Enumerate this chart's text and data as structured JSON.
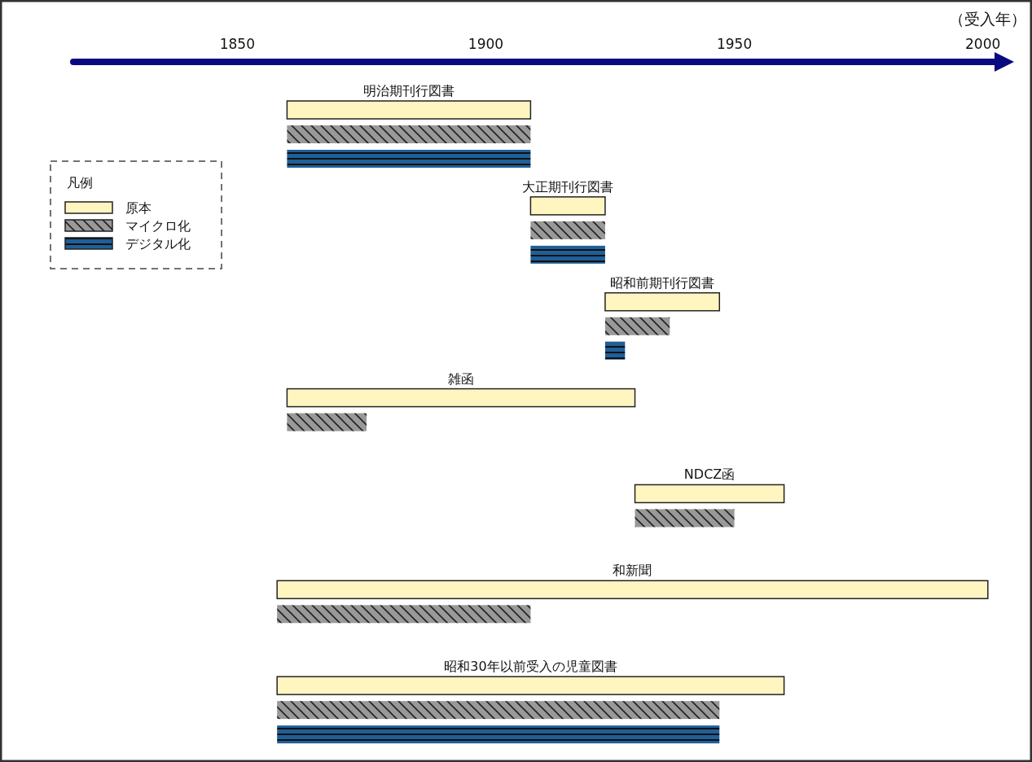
{
  "chart_data": {
    "type": "bar",
    "orientation": "horizontal",
    "categories": [
      "明治期刊行図書",
      "大正期刊行図書",
      "昭和前期刊行図書",
      "雑函",
      "NDCZ函",
      "和新聞",
      "昭和30年以前受入の児童図書"
    ],
    "series": [
      {
        "name": "原本",
        "color": "#fff5c0",
        "base": [
          1860,
          1909,
          1924,
          1860,
          1930,
          1858,
          1858
        ],
        "values": [
          49,
          15,
          23,
          70,
          30,
          143,
          102
        ]
      },
      {
        "name": "マイクロ化",
        "color": "#999999",
        "base": [
          1860,
          1909,
          1924,
          1860,
          1930,
          1858,
          1858
        ],
        "values": [
          49,
          15,
          13,
          16,
          20,
          51,
          89
        ]
      },
      {
        "name": "デジタル化",
        "color": "#1f5f99",
        "base": [
          1860,
          1909,
          1924,
          null,
          null,
          null,
          1858
        ],
        "values": [
          49,
          15,
          4,
          null,
          null,
          null,
          89
        ]
      }
    ],
    "xlim": [
      1817,
      2003
    ],
    "xticks": [
      1850,
      1900,
      1950,
      2000
    ],
    "xlabel": "（受入年）",
    "legend": "top left",
    "legend_title": "凡例",
    "grid": false
  }
}
